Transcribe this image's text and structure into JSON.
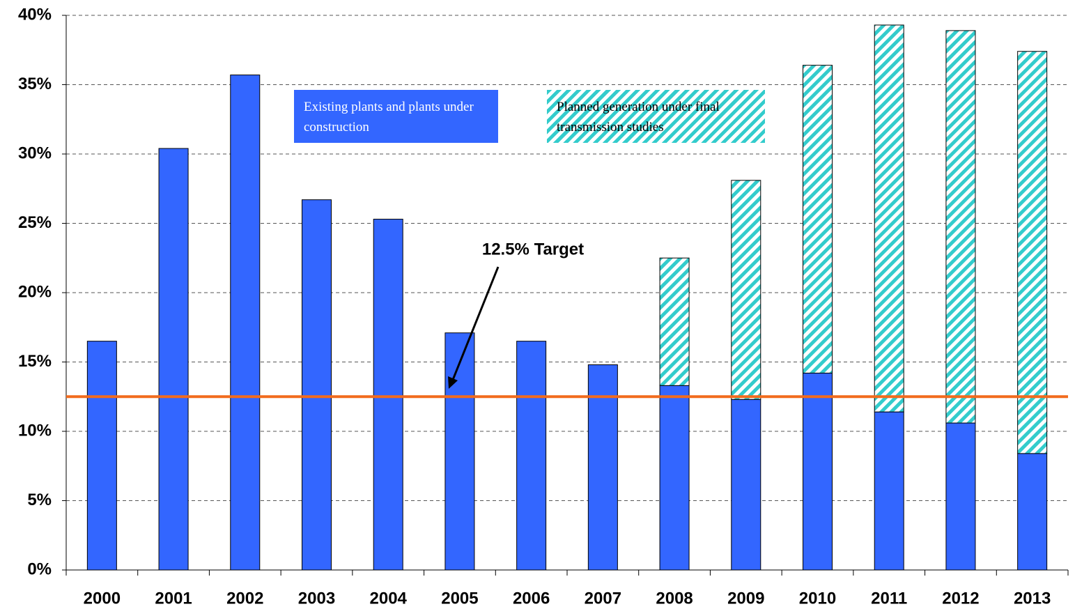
{
  "chart_data": {
    "type": "stacked_bar",
    "categories": [
      "2000",
      "2001",
      "2002",
      "2003",
      "2004",
      "2005",
      "2006",
      "2007",
      "2008",
      "2009",
      "2010",
      "2011",
      "2012",
      "2013"
    ],
    "series": [
      {
        "name": "Existing plants and plants under construction",
        "color": "#3366ff",
        "pattern": "solid",
        "values": [
          16.5,
          30.4,
          35.7,
          26.7,
          25.3,
          17.1,
          16.5,
          14.8,
          13.3,
          12.3,
          14.2,
          11.4,
          10.6,
          8.4
        ]
      },
      {
        "name": "Planned generation under final transmission studies",
        "color": "#33cccc",
        "pattern": "hatch",
        "values": [
          null,
          null,
          null,
          null,
          null,
          null,
          null,
          null,
          9.2,
          15.8,
          22.2,
          27.9,
          28.3,
          29.0
        ]
      }
    ],
    "target": {
      "value": 12.5,
      "label": "12.5% Target",
      "color": "#f26b1d"
    },
    "ylim": [
      0,
      40
    ],
    "yticks": [
      {
        "value": 0,
        "label": "0%"
      },
      {
        "value": 5,
        "label": "5%"
      },
      {
        "value": 10,
        "label": "10%"
      },
      {
        "value": 15,
        "label": "15%"
      },
      {
        "value": 20,
        "label": "20%"
      },
      {
        "value": 25,
        "label": "25%"
      },
      {
        "value": 30,
        "label": "30%"
      },
      {
        "value": 35,
        "label": "35%"
      },
      {
        "value": 40,
        "label": "40%"
      }
    ],
    "grid": true
  }
}
